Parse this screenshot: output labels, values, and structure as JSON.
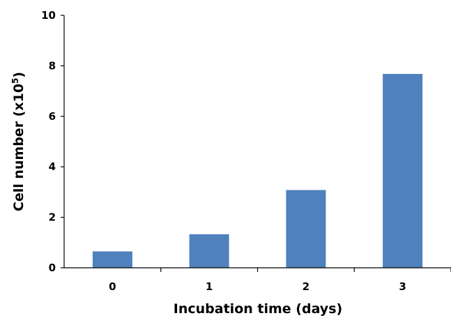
{
  "chart_data": {
    "type": "bar",
    "categories": [
      "0",
      "1",
      "2",
      "3"
    ],
    "values": [
      0.65,
      1.33,
      3.08,
      7.68
    ],
    "xlabel": "Incubation time (days)",
    "ylabel_main": "Cell number  (x10",
    "ylabel_sup": "5",
    "ylabel_end": ")",
    "ylim": [
      0,
      10
    ],
    "yticks": [
      "0",
      "2",
      "4",
      "6",
      "8",
      "10"
    ],
    "grid": false,
    "bar_color": "#4f81bd"
  }
}
